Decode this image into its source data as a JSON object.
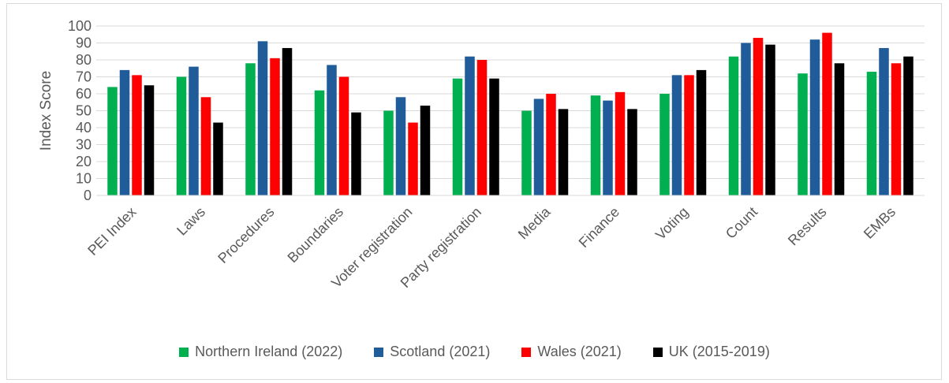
{
  "chart_data": {
    "type": "bar",
    "title": "",
    "xlabel": "",
    "ylabel": "Index Score",
    "ylim": [
      0,
      100
    ],
    "yticks": [
      0,
      10,
      20,
      30,
      40,
      50,
      60,
      70,
      80,
      90,
      100
    ],
    "grid": true,
    "legend_position": "bottom",
    "categories": [
      "PEI Index",
      "Laws",
      "Procedures",
      "Boundaries",
      "Voter registration",
      "Party registration",
      "Media",
      "Finance",
      "Voting",
      "Count",
      "Results",
      "EMBs"
    ],
    "series": [
      {
        "name": "Northern Ireland (2022)",
        "color": "#00b050",
        "values": [
          64,
          70,
          78,
          62,
          50,
          69,
          50,
          59,
          60,
          82,
          72,
          73
        ]
      },
      {
        "name": "Scotland (2021)",
        "color": "#1f5c99",
        "values": [
          74,
          76,
          91,
          77,
          58,
          82,
          57,
          56,
          71,
          90,
          92,
          87
        ]
      },
      {
        "name": "Wales (2021)",
        "color": "#ff0000",
        "values": [
          71,
          58,
          81,
          70,
          43,
          80,
          60,
          61,
          71,
          93,
          96,
          78
        ]
      },
      {
        "name": "UK (2015-2019)",
        "color": "#000000",
        "values": [
          65,
          43,
          87,
          49,
          53,
          69,
          51,
          51,
          74,
          89,
          78,
          82
        ]
      }
    ]
  }
}
